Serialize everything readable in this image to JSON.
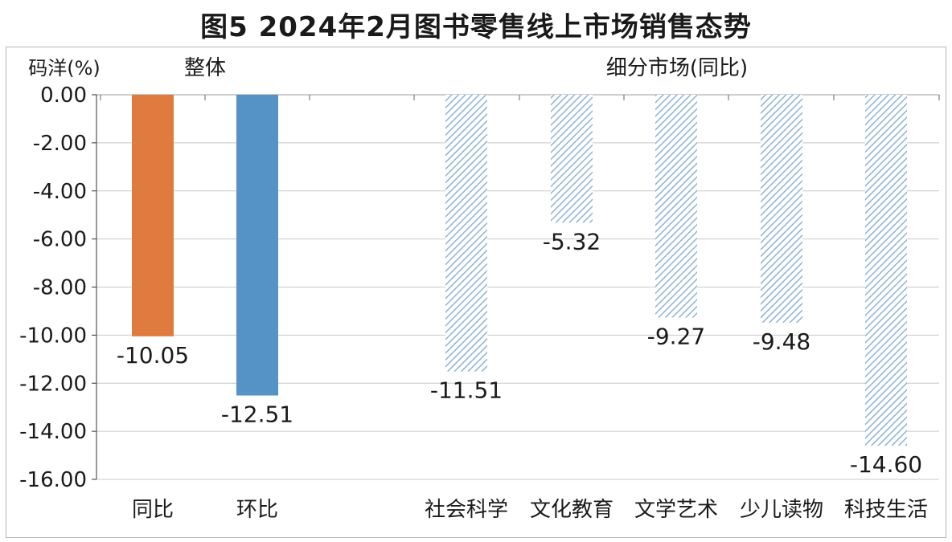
{
  "title": "图5  2024年2月图书零售线上市场销售态势",
  "chart_data": {
    "type": "bar",
    "y_unit_label": "码洋(%)",
    "group_labels": [
      "整体",
      "细分市场(同比)"
    ],
    "categories": [
      "同比",
      "环比",
      "社会科学",
      "文化教育",
      "文学艺术",
      "少儿读物",
      "科技生活"
    ],
    "values": [
      -10.05,
      -12.51,
      -11.51,
      -5.32,
      -9.27,
      -9.48,
      -14.6
    ],
    "data_labels": [
      "-10.05",
      "-12.51",
      "-11.51",
      "-5.32",
      "-9.27",
      "-9.48",
      "-14.60"
    ],
    "bar_styles": [
      "solid-orange",
      "solid-blue",
      "hatched",
      "hatched",
      "hatched",
      "hatched",
      "hatched"
    ],
    "colors": {
      "orange": "#e07b3f",
      "blue": "#5592c6",
      "hatch": "#8cb3d9",
      "grid": "#c8c8c8"
    },
    "ylim": [
      -16,
      0
    ],
    "yticks": [
      "0.00",
      "-2.00",
      "-4.00",
      "-6.00",
      "-8.00",
      "-10.00",
      "-12.00",
      "-14.00",
      "-16.00"
    ],
    "grid": true,
    "legend": "none"
  }
}
